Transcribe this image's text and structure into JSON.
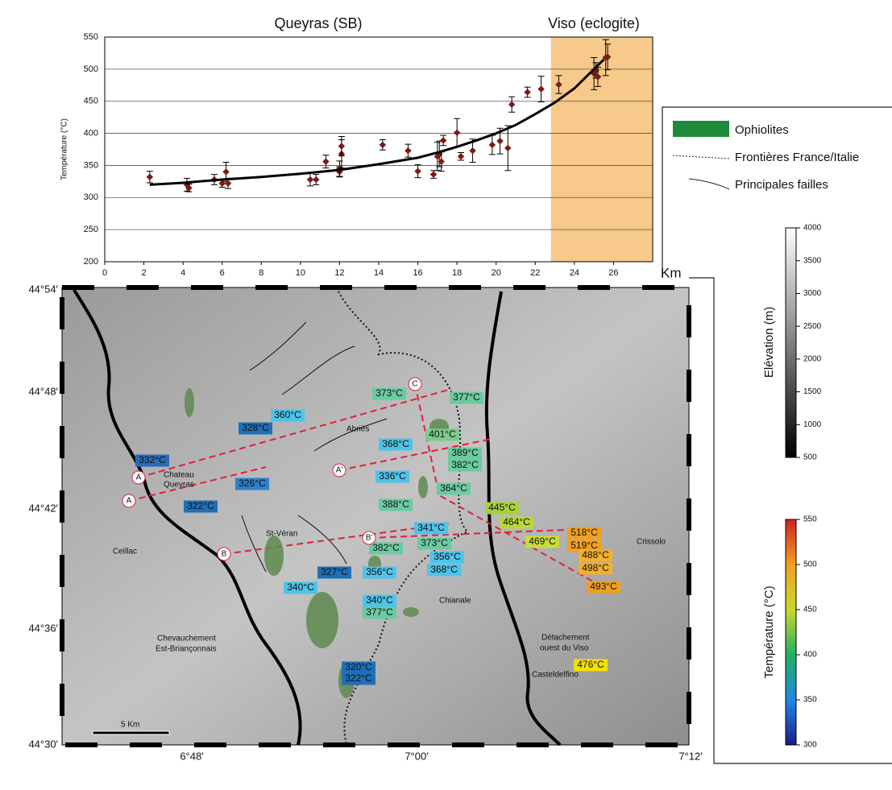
{
  "chart_data": {
    "type": "scatter",
    "annotations": [
      "Queyras (SB)",
      "Viso (eclogite)"
    ],
    "xlabel": "Km",
    "ylabel": "Température (°C)",
    "x": [
      2.3,
      4.2,
      4.3,
      5.6,
      6.0,
      6.2,
      6.3,
      10.5,
      10.8,
      11.3,
      12.0,
      12.0,
      12.1,
      12.1,
      14.2,
      15.5,
      16.0,
      16.8,
      17.0,
      17.1,
      17.2,
      17.3,
      18.0,
      18.2,
      18.8,
      19.8,
      20.2,
      20.6,
      20.8,
      21.6,
      22.3,
      23.2,
      25.0,
      25.1,
      25.2,
      25.6,
      25.7
    ],
    "values": [
      332,
      320,
      315,
      328,
      322,
      340,
      322,
      328,
      328,
      356,
      340,
      345,
      368,
      380,
      382,
      373,
      341,
      336,
      364,
      368,
      356,
      389,
      401,
      364,
      373,
      382,
      388,
      377,
      445,
      464,
      469,
      476,
      493,
      498,
      488,
      518,
      519
    ],
    "errors": [
      9,
      10,
      6,
      8,
      6,
      15,
      8,
      10,
      8,
      10,
      8,
      12,
      22,
      15,
      8,
      10,
      10,
      6,
      22,
      20,
      15,
      8,
      22,
      6,
      18,
      15,
      20,
      35,
      12,
      8,
      20,
      14,
      25,
      12,
      15,
      28,
      20
    ],
    "color": "#7a1a1a",
    "fit": {
      "x": [
        2.3,
        4,
        6,
        8,
        10,
        12,
        14,
        16,
        17,
        18,
        19,
        20,
        21,
        22,
        23,
        24,
        25,
        25.5
      ],
      "values": [
        320,
        323,
        328,
        332,
        337,
        343,
        352,
        362,
        370,
        379,
        389,
        400,
        413,
        430,
        448,
        470,
        500,
        515
      ],
      "color": "#000000"
    },
    "highlight_x": [
      22.8,
      28
    ],
    "highlight_color": "#f7c98a",
    "xlim": [
      0,
      28
    ],
    "xticks": [
      0,
      2,
      4,
      6,
      8,
      10,
      12,
      14,
      16,
      18,
      20,
      22,
      24,
      26
    ],
    "ylim": [
      200,
      550
    ],
    "yticks": [
      200,
      250,
      300,
      350,
      400,
      450,
      500,
      550
    ],
    "grid": true
  },
  "map": {
    "lat_ticks": [
      "44°54′",
      "44°48′",
      "44°42′",
      "44°36′",
      "44°30′"
    ],
    "lon_ticks": [
      "6°48′",
      "7°00′",
      "7°12′"
    ],
    "temperatures": [
      {
        "text": "332°C",
        "color": "#2a6bb5"
      },
      {
        "text": "326°C",
        "color": "#2f80c8"
      },
      {
        "text": "322°C",
        "color": "#1f6fb8"
      },
      {
        "text": "328°C",
        "color": "#1f6fb8"
      },
      {
        "text": "360°C",
        "color": "#4fc3e8"
      },
      {
        "text": "373°C",
        "color": "#6ccaa0"
      },
      {
        "text": "377°C",
        "color": "#6ccaa0"
      },
      {
        "text": "401°C",
        "color": "#7acc8a"
      },
      {
        "text": "368°C",
        "color": "#4fc3e8"
      },
      {
        "text": "389°C",
        "color": "#6ccaa0"
      },
      {
        "text": "382°C",
        "color": "#6ccaa0"
      },
      {
        "text": "336°C",
        "color": "#4fc3e8"
      },
      {
        "text": "364°C",
        "color": "#6ccaa0"
      },
      {
        "text": "388°C",
        "color": "#6ccaa0"
      },
      {
        "text": "445°C",
        "color": "#a8d23a"
      },
      {
        "text": "464°C",
        "color": "#b8d83a"
      },
      {
        "text": "341°C",
        "color": "#4fc3e8"
      },
      {
        "text": "469°C",
        "color": "#c8dc3a"
      },
      {
        "text": "518°C",
        "color": "#f0a020"
      },
      {
        "text": "519°C",
        "color": "#f0a020"
      },
      {
        "text": "488°C",
        "color": "#f2b030"
      },
      {
        "text": "498°C",
        "color": "#f2b030"
      },
      {
        "text": "493°C",
        "color": "#f0a020"
      },
      {
        "text": "382°C",
        "color": "#6ccaa0"
      },
      {
        "text": "373°C",
        "color": "#6ccaa0"
      },
      {
        "text": "356°C",
        "color": "#4fc3e8"
      },
      {
        "text": "368°C",
        "color": "#4fc3e8"
      },
      {
        "text": "356°C",
        "color": "#4fc3e8"
      },
      {
        "text": "327°C",
        "color": "#1f6fb8"
      },
      {
        "text": "340°C",
        "color": "#4fc3e8"
      },
      {
        "text": "340°C",
        "color": "#4fc3e8"
      },
      {
        "text": "377°C",
        "color": "#6ccaa0"
      },
      {
        "text": "320°C",
        "color": "#1f6fb8"
      },
      {
        "text": "322°C",
        "color": "#1f6fb8"
      },
      {
        "text": "476°C",
        "color": "#f5e000"
      }
    ],
    "sections": [
      "A",
      "A",
      "A'",
      "B",
      "B'",
      "C"
    ],
    "places": [
      "Chateau",
      "Queyras",
      "Abriès",
      "St-Véran",
      "Ceillac",
      "Chianale",
      "Crissolo",
      "Casteldelfino",
      "Chevauchement",
      "Est-Briançonnais",
      "Détachement",
      "ouest du Viso"
    ],
    "scale_bar": "5 Km"
  },
  "legend": {
    "items": [
      "Ophiolites",
      "Frontières France/Italie",
      "Principales failles"
    ],
    "ophiolite_color": "#1f8a3a"
  },
  "elevation_bar": {
    "label": "Elévation (m)",
    "ylim": [
      500,
      4000
    ],
    "ticks": [
      500,
      1000,
      1500,
      2000,
      2500,
      3000,
      3500,
      4000
    ]
  },
  "temperature_bar": {
    "label": "Température (°C)",
    "ylim": [
      300,
      550
    ],
    "ticks": [
      300,
      350,
      400,
      450,
      500,
      550
    ]
  }
}
